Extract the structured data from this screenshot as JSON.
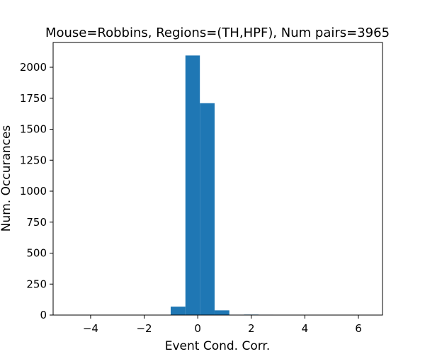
{
  "chart_data": {
    "type": "bar",
    "title": "Mouse=Robbins, Regions=(TH,HPF), Num pairs=3965",
    "xlabel": "Event Cond. Corr.",
    "ylabel": "Num. Occurances",
    "xlim": [
      -5.4,
      6.9
    ],
    "ylim": [
      0,
      2200
    ],
    "xticks": [
      -4,
      -2,
      0,
      2,
      4,
      6
    ],
    "yticks": [
      0,
      250,
      500,
      750,
      1000,
      1250,
      1500,
      1750,
      2000
    ],
    "xtick_labels": [
      "−4",
      "−2",
      "0",
      "2",
      "4",
      "6"
    ],
    "ytick_labels": [
      "0",
      "250",
      "500",
      "750",
      "1000",
      "1250",
      "1500",
      "1750",
      "2000"
    ],
    "bin_edges": [
      -4.84,
      -4.29,
      -3.74,
      -3.2,
      -2.65,
      -2.1,
      -1.56,
      -1.01,
      -0.46,
      0.08,
      0.63,
      1.18,
      1.73,
      2.27,
      2.82,
      3.37,
      3.91,
      4.46,
      5.01,
      5.56,
      6.1
    ],
    "values": [
      0,
      0,
      0,
      0,
      2,
      0,
      2,
      68,
      2095,
      1710,
      38,
      3,
      4,
      3,
      2,
      0,
      0,
      0,
      0,
      2
    ],
    "bar_color": "#1f77b4",
    "grid": false
  }
}
